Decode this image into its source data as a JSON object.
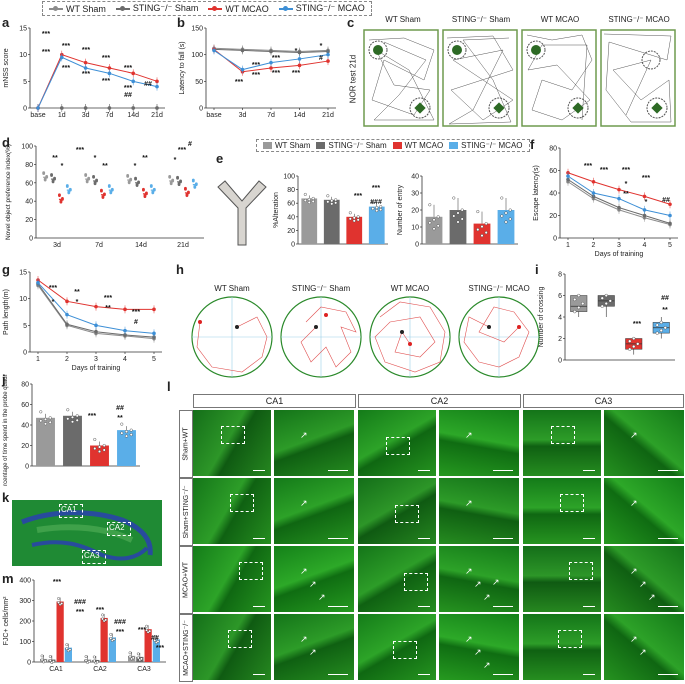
{
  "legend_top": {
    "items": [
      {
        "label": "WT Sham",
        "color": "#8c8c8c"
      },
      {
        "label": "STING⁻/⁻ Sham",
        "color": "#6b6b6b"
      },
      {
        "label": "WT MCAO",
        "color": "#e0332f"
      },
      {
        "label": "STING⁻/⁻ MCAO",
        "color": "#3d8fd6"
      }
    ]
  },
  "legend_e": {
    "items": [
      {
        "label": "WT Sham",
        "color": "#9a9a9a"
      },
      {
        "label": "STING⁻/⁻ Sham",
        "color": "#6b6b6b"
      },
      {
        "label": "WT MCAO",
        "color": "#e0332f"
      },
      {
        "label": "STING⁻/⁻ MCAO",
        "color": "#5aaee8"
      }
    ]
  },
  "panel_letters": {
    "a": "a",
    "b": "b",
    "c": "c",
    "d": "d",
    "e": "e",
    "f": "f",
    "g": "g",
    "h": "h",
    "i": "i",
    "j": "j",
    "k": "k",
    "l": "l",
    "m": "m"
  },
  "panel_c": {
    "titles": [
      "WT Sham",
      "STING⁻/⁻ Sham",
      "WT MCAO",
      "STING⁻/⁻ MCAO"
    ],
    "side_label": "NOR test 21d"
  },
  "panel_h": {
    "titles": [
      "WT Sham",
      "STING⁻/⁻ Sham",
      "WT MCAO",
      "STING⁻/⁻ MCAO"
    ]
  },
  "panel_k": {
    "regions": [
      "CA1",
      "CA2",
      "CA3"
    ]
  },
  "panel_l": {
    "columns": [
      "CA1",
      "CA2",
      "CA3"
    ],
    "rows": [
      "Sham+WT",
      "Sham+STING⁻/⁻",
      "MCAO+WT",
      "MCAO+STING⁻/⁻"
    ]
  },
  "colors": {
    "gray": "#8c8c8c",
    "dark_gray": "#6b6b6b",
    "red": "#e0332f",
    "blue": "#3d8fd6",
    "light_blue": "#5aaee8",
    "arena": "#6e9a4e",
    "tissue": "#3c9a2c"
  },
  "chart_data": [
    {
      "id": "a",
      "type": "line",
      "ylabel": "mNSS score",
      "categories": [
        "base",
        "1d",
        "3d",
        "7d",
        "14d",
        "21d"
      ],
      "ylim": [
        0,
        15
      ],
      "yticks": [
        0,
        5,
        10,
        15
      ],
      "series": [
        {
          "name": "WT Sham",
          "values": [
            0,
            0,
            0,
            0,
            0,
            0
          ]
        },
        {
          "name": "STING⁻/⁻ Sham",
          "values": [
            0,
            0,
            0,
            0,
            0,
            0
          ]
        },
        {
          "name": "WT MCAO",
          "values": [
            0,
            10,
            8.5,
            7.5,
            6.5,
            5
          ]
        },
        {
          "name": "STING⁻/⁻ MCAO",
          "values": [
            0,
            9.5,
            7.5,
            6.5,
            5,
            4
          ]
        }
      ],
      "annotations": [
        "***",
        "***",
        "***",
        "***",
        "***",
        "***",
        "***",
        "***",
        "***",
        "***",
        "##",
        "##"
      ]
    },
    {
      "id": "b",
      "type": "line",
      "ylabel": "Latency to fall (s)",
      "categories": [
        "base",
        "3d",
        "7d",
        "14d",
        "21d"
      ],
      "ylim": [
        0,
        150
      ],
      "yticks": [
        0,
        50,
        100,
        150
      ],
      "series": [
        {
          "name": "WT Sham",
          "values": [
            112,
            110,
            108,
            106,
            108
          ]
        },
        {
          "name": "STING⁻/⁻ Sham",
          "values": [
            110,
            108,
            106,
            104,
            106
          ]
        },
        {
          "name": "WT MCAO",
          "values": [
            110,
            68,
            75,
            80,
            88
          ]
        },
        {
          "name": "STING⁻/⁻ MCAO",
          "values": [
            108,
            72,
            85,
            92,
            100
          ]
        }
      ],
      "annotations": [
        "***",
        "***",
        "***",
        "***",
        "***",
        "***",
        "*",
        "*",
        "#"
      ]
    },
    {
      "id": "d",
      "type": "bar",
      "ylabel": "Novel object preference index(%)",
      "categories": [
        "3d",
        "7d",
        "14d",
        "21d"
      ],
      "ylim": [
        0,
        100
      ],
      "yticks": [
        0,
        20,
        40,
        60,
        80,
        100
      ],
      "series": [
        {
          "name": "WT Sham",
          "values": [
            66,
            64,
            63,
            62
          ]
        },
        {
          "name": "STING⁻/⁻ Sham",
          "values": [
            64,
            62,
            60,
            61
          ]
        },
        {
          "name": "WT MCAO",
          "values": [
            42,
            47,
            48,
            49
          ]
        },
        {
          "name": "STING⁻/⁻ MCAO",
          "values": [
            52,
            52,
            52,
            58
          ]
        }
      ],
      "annotations": [
        "**",
        "*",
        "***",
        "*",
        "**",
        "*",
        "**",
        "*",
        "***",
        "#"
      ]
    },
    {
      "id": "e1",
      "type": "bar",
      "ylabel": "%Alteration",
      "categories": [
        "WT Sham",
        "STING⁻/⁻ Sham",
        "WT MCAO",
        "STING⁻/⁻ MCAO"
      ],
      "ylim": [
        0,
        100
      ],
      "yticks": [
        0,
        20,
        40,
        60,
        80,
        100
      ],
      "values": [
        67,
        65,
        40,
        55
      ],
      "annotations": [
        "***",
        "###",
        "***"
      ]
    },
    {
      "id": "e2",
      "type": "bar",
      "ylabel": "Number of entry",
      "categories": [
        "WT Sham",
        "STING⁻/⁻ Sham",
        "WT MCAO",
        "STING⁻/⁻ MCAO"
      ],
      "ylim": [
        0,
        40
      ],
      "yticks": [
        0,
        10,
        20,
        30,
        40
      ],
      "values": [
        16,
        20,
        12,
        20
      ]
    },
    {
      "id": "f",
      "type": "line",
      "ylabel": "Escape latency(s)",
      "xlabel": "Days of training",
      "categories": [
        "1",
        "2",
        "3",
        "4",
        "5"
      ],
      "ylim": [
        0,
        80
      ],
      "yticks": [
        0,
        20,
        40,
        60,
        80
      ],
      "series": [
        {
          "name": "WT Sham",
          "values": [
            50,
            35,
            25,
            18,
            12
          ]
        },
        {
          "name": "STING⁻/⁻ Sham",
          "values": [
            52,
            37,
            27,
            20,
            13
          ]
        },
        {
          "name": "WT MCAO",
          "values": [
            58,
            50,
            43,
            37,
            30
          ]
        },
        {
          "name": "STING⁻/⁻ MCAO",
          "values": [
            55,
            40,
            35,
            25,
            20
          ]
        }
      ],
      "annotations": [
        "***",
        "***",
        "***",
        "***",
        "*",
        "**",
        "*",
        "##"
      ]
    },
    {
      "id": "g",
      "type": "line",
      "ylabel": "Path length(m)",
      "xlabel": "Days of training",
      "categories": [
        "1",
        "2",
        "3",
        "4",
        "5"
      ],
      "ylim": [
        0,
        15
      ],
      "yticks": [
        0,
        5,
        10,
        15
      ],
      "series": [
        {
          "name": "WT Sham",
          "values": [
            12.5,
            5,
            3.5,
            3,
            2.5
          ]
        },
        {
          "name": "STING⁻/⁻ Sham",
          "values": [
            12.8,
            5.2,
            3.8,
            3.2,
            2.8
          ]
        },
        {
          "name": "WT MCAO",
          "values": [
            13.5,
            9.5,
            8.5,
            8,
            8
          ]
        },
        {
          "name": "STING⁻/⁻ MCAO",
          "values": [
            13,
            7,
            5,
            4,
            3.5
          ]
        }
      ],
      "annotations": [
        "***",
        "**",
        "***",
        "***",
        "*",
        "*",
        "**",
        "#"
      ]
    },
    {
      "id": "i",
      "type": "box",
      "ylabel": "Number of crossing",
      "categories": [
        "WT Sham",
        "STING⁻/⁻ Sham",
        "WT MCAO",
        "STING⁻/⁻ MCAO"
      ],
      "ylim": [
        0,
        8
      ],
      "yticks": [
        0,
        2,
        4,
        6,
        8
      ],
      "boxes": [
        {
          "min": 4,
          "q1": 4.5,
          "median": 5,
          "q3": 6,
          "max": 6
        },
        {
          "min": 4,
          "q1": 5,
          "median": 5.5,
          "q3": 6,
          "max": 6
        },
        {
          "min": 0.5,
          "q1": 1,
          "median": 1.5,
          "q3": 2,
          "max": 2
        },
        {
          "min": 2,
          "q1": 2.5,
          "median": 3,
          "q3": 3.5,
          "max": 4
        }
      ],
      "annotations": [
        "***",
        "**",
        "##"
      ]
    },
    {
      "id": "j",
      "type": "bar",
      "ylabel": "Percentage of time spend in the probe quadrant(%)",
      "categories": [
        "WT Sham",
        "STING⁻/⁻ Sham",
        "WT MCAO",
        "STING⁻/⁻ MCAO"
      ],
      "ylim": [
        0,
        80
      ],
      "yticks": [
        0,
        20,
        40,
        60,
        80
      ],
      "values": [
        47,
        49,
        20,
        35
      ],
      "annotations": [
        "***",
        "**",
        "##"
      ]
    },
    {
      "id": "m",
      "type": "bar",
      "ylabel": "FJC+ cells/mm²",
      "categories": [
        "CA1",
        "CA2",
        "CA3"
      ],
      "ylim": [
        0,
        400
      ],
      "yticks": [
        0,
        100,
        200,
        300,
        400
      ],
      "series": [
        {
          "name": "WT Sham",
          "values": [
            15,
            12,
            30
          ]
        },
        {
          "name": "STING⁻/⁻ Sham",
          "values": [
            12,
            10,
            25
          ]
        },
        {
          "name": "WT MCAO",
          "values": [
            295,
            215,
            160
          ]
        },
        {
          "name": "STING⁻/⁻ MCAO",
          "values": [
            70,
            120,
            110
          ]
        }
      ],
      "annotations": [
        "***",
        "###",
        "***",
        "***",
        "###",
        "***",
        "***",
        "##",
        "***"
      ]
    }
  ]
}
